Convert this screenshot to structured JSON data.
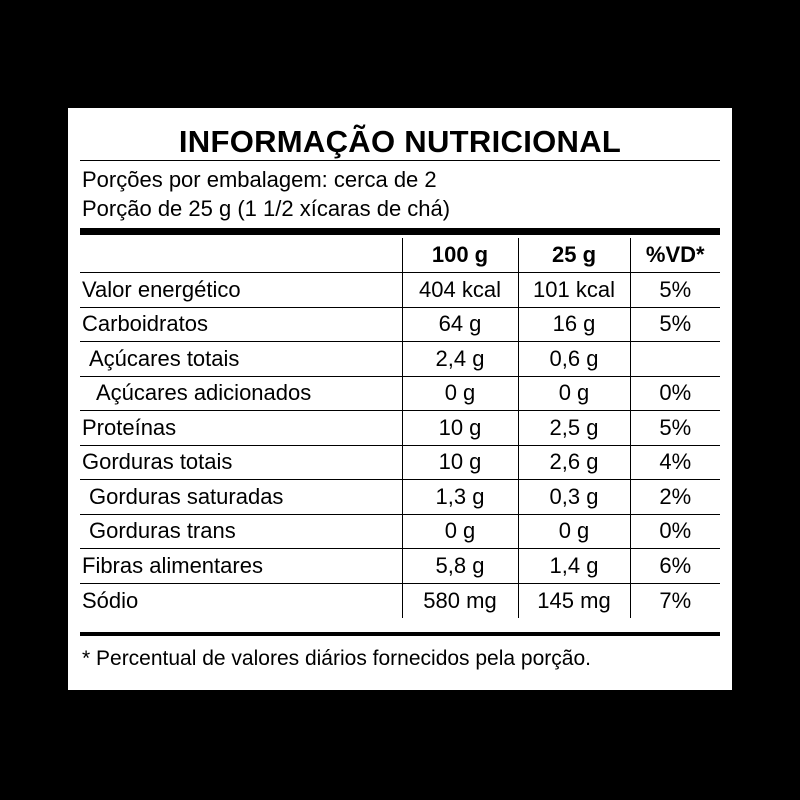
{
  "label": {
    "title": "INFORMAÇÃO NUTRICIONAL",
    "servings_per_package": "Porções por embalagem: cerca de 2",
    "serving_size": "Porção de 25 g (1 1/2 xícaras de chá)",
    "columns": [
      "",
      "100 g",
      "25 g",
      "%VD*"
    ],
    "rows": [
      {
        "name": "Valor energético",
        "per100": "404 kcal",
        "per_serving": "101 kcal",
        "dv": "5%"
      },
      {
        "name": "Carboidratos",
        "per100": "64 g",
        "per_serving": "16 g",
        "dv": "5%"
      },
      {
        "name": "Açúcares totais",
        "per100": "2,4 g",
        "per_serving": "0,6 g",
        "dv": ""
      },
      {
        "name": "Açúcares adicionados",
        "per100": "0 g",
        "per_serving": "0 g",
        "dv": "0%"
      },
      {
        "name": "Proteínas",
        "per100": "10 g",
        "per_serving": "2,5 g",
        "dv": "5%"
      },
      {
        "name": "Gorduras totais",
        "per100": "10 g",
        "per_serving": "2,6 g",
        "dv": "4%"
      },
      {
        "name": "Gorduras saturadas",
        "per100": "1,3 g",
        "per_serving": "0,3 g",
        "dv": "2%"
      },
      {
        "name": "Gorduras trans",
        "per100": "0 g",
        "per_serving": "0 g",
        "dv": "0%"
      },
      {
        "name": "Fibras alimentares",
        "per100": "5,8 g",
        "per_serving": "1,4 g",
        "dv": "6%"
      },
      {
        "name": "Sódio",
        "per100": "580 mg",
        "per_serving": "145 mg",
        "dv": "7%"
      }
    ],
    "footnote": "* Percentual de valores diários fornecidos pela porção."
  }
}
